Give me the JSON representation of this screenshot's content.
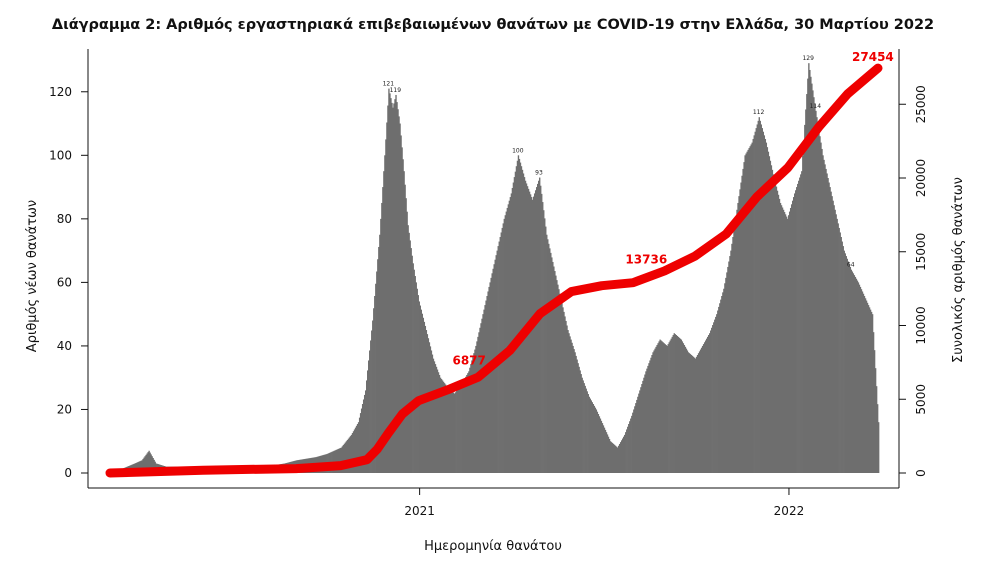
{
  "chart_data": {
    "type": "bar",
    "title": "Διάγραμμα 2: Αριθμός εργαστηριακά επιβεβαιωμένων θανάτων με COVID-19 στην Ελλάδα, 30 Μαρτίου 2022",
    "xlabel": "Ημερομηνία θανάτου",
    "ylabel": "Αριθμός νέων θανάτων",
    "y2label": "Συνολικός αριθμός θανάτων",
    "x_range": [
      "2020-03-01",
      "2022-03-30"
    ],
    "x_ticks": [
      {
        "date": "2021-01-01",
        "label": "2021"
      },
      {
        "date": "2022-01-01",
        "label": "2022"
      }
    ],
    "ylim": [
      0,
      130
    ],
    "y_ticks": [
      0,
      20,
      40,
      60,
      80,
      100,
      120
    ],
    "y2lim": [
      0,
      28000
    ],
    "y2_ticks": [
      0,
      5000,
      10000,
      15000,
      20000,
      25000
    ],
    "grid": false,
    "series": [
      {
        "name": "Αριθμός νέων θανάτων",
        "kind": "bar",
        "color": "#6e6e6e",
        "points": [
          [
            "2020-03-10",
            1
          ],
          [
            "2020-03-25",
            3
          ],
          [
            "2020-04-01",
            4
          ],
          [
            "2020-04-08",
            7
          ],
          [
            "2020-04-15",
            3
          ],
          [
            "2020-04-25",
            2
          ],
          [
            "2020-05-05",
            2
          ],
          [
            "2020-06-01",
            1
          ],
          [
            "2020-07-01",
            1
          ],
          [
            "2020-08-01",
            2
          ],
          [
            "2020-08-20",
            3
          ],
          [
            "2020-09-01",
            4
          ],
          [
            "2020-09-20",
            5
          ],
          [
            "2020-10-01",
            6
          ],
          [
            "2020-10-15",
            8
          ],
          [
            "2020-10-25",
            12
          ],
          [
            "2020-11-01",
            16
          ],
          [
            "2020-11-08",
            26
          ],
          [
            "2020-11-15",
            48
          ],
          [
            "2020-11-22",
            75
          ],
          [
            "2020-11-28",
            105
          ],
          [
            "2020-12-01",
            121
          ],
          [
            "2020-12-05",
            115
          ],
          [
            "2020-12-08",
            119
          ],
          [
            "2020-12-12",
            110
          ],
          [
            "2020-12-16",
            95
          ],
          [
            "2020-12-20",
            78
          ],
          [
            "2020-12-25",
            66
          ],
          [
            "2020-12-31",
            54
          ],
          [
            "2021-01-07",
            45
          ],
          [
            "2021-01-14",
            36
          ],
          [
            "2021-01-21",
            30
          ],
          [
            "2021-01-28",
            27
          ],
          [
            "2021-02-04",
            25
          ],
          [
            "2021-02-11",
            28
          ],
          [
            "2021-02-18",
            32
          ],
          [
            "2021-02-25",
            40
          ],
          [
            "2021-03-04",
            50
          ],
          [
            "2021-03-11",
            60
          ],
          [
            "2021-03-18",
            70
          ],
          [
            "2021-03-25",
            80
          ],
          [
            "2021-04-01",
            88
          ],
          [
            "2021-04-08",
            100
          ],
          [
            "2021-04-15",
            92
          ],
          [
            "2021-04-22",
            86
          ],
          [
            "2021-04-29",
            93
          ],
          [
            "2021-05-06",
            75
          ],
          [
            "2021-05-13",
            65
          ],
          [
            "2021-05-20",
            55
          ],
          [
            "2021-05-27",
            45
          ],
          [
            "2021-06-03",
            38
          ],
          [
            "2021-06-10",
            30
          ],
          [
            "2021-06-17",
            24
          ],
          [
            "2021-06-24",
            20
          ],
          [
            "2021-07-01",
            15
          ],
          [
            "2021-07-08",
            10
          ],
          [
            "2021-07-15",
            8
          ],
          [
            "2021-07-22",
            12
          ],
          [
            "2021-07-29",
            18
          ],
          [
            "2021-08-05",
            25
          ],
          [
            "2021-08-12",
            32
          ],
          [
            "2021-08-19",
            38
          ],
          [
            "2021-08-26",
            42
          ],
          [
            "2021-09-02",
            40
          ],
          [
            "2021-09-09",
            44
          ],
          [
            "2021-09-16",
            42
          ],
          [
            "2021-09-23",
            38
          ],
          [
            "2021-09-30",
            36
          ],
          [
            "2021-10-07",
            40
          ],
          [
            "2021-10-14",
            44
          ],
          [
            "2021-10-21",
            50
          ],
          [
            "2021-10-28",
            58
          ],
          [
            "2021-11-04",
            70
          ],
          [
            "2021-11-11",
            85
          ],
          [
            "2021-11-18",
            100
          ],
          [
            "2021-11-25",
            104
          ],
          [
            "2021-12-02",
            112
          ],
          [
            "2021-12-09",
            104
          ],
          [
            "2021-12-16",
            94
          ],
          [
            "2021-12-23",
            85
          ],
          [
            "2021-12-30",
            80
          ],
          [
            "2022-01-06",
            88
          ],
          [
            "2022-01-13",
            95
          ],
          [
            "2022-01-20",
            129
          ],
          [
            "2022-01-27",
            114
          ],
          [
            "2022-02-03",
            100
          ],
          [
            "2022-02-10",
            90
          ],
          [
            "2022-02-17",
            80
          ],
          [
            "2022-02-24",
            70
          ],
          [
            "2022-03-03",
            64
          ],
          [
            "2022-03-10",
            60
          ],
          [
            "2022-03-17",
            55
          ],
          [
            "2022-03-24",
            50
          ],
          [
            "2022-03-30",
            16
          ]
        ]
      },
      {
        "name": "Συνολικός αριθμός θανάτων",
        "kind": "line",
        "axis": "right",
        "color": "#ee0000",
        "points": [
          [
            "2020-03-01",
            0
          ],
          [
            "2020-06-01",
            190
          ],
          [
            "2020-09-01",
            300
          ],
          [
            "2020-10-15",
            500
          ],
          [
            "2020-11-10",
            900
          ],
          [
            "2020-11-20",
            1600
          ],
          [
            "2020-12-01",
            2700
          ],
          [
            "2020-12-15",
            4000
          ],
          [
            "2020-12-31",
            4900
          ],
          [
            "2021-01-31",
            5700
          ],
          [
            "2021-02-28",
            6500
          ],
          [
            "2021-03-31",
            8300
          ],
          [
            "2021-04-30",
            10800
          ],
          [
            "2021-05-31",
            12300
          ],
          [
            "2021-06-30",
            12700
          ],
          [
            "2021-07-31",
            12900
          ],
          [
            "2021-08-31",
            13700
          ],
          [
            "2021-09-30",
            14700
          ],
          [
            "2021-10-31",
            16200
          ],
          [
            "2021-11-30",
            18700
          ],
          [
            "2021-12-31",
            20700
          ],
          [
            "2022-01-31",
            23500
          ],
          [
            "2022-02-28",
            25700
          ],
          [
            "2022-03-30",
            27454
          ]
        ]
      }
    ],
    "annotations": [
      {
        "date": "2021-02-19",
        "value": 6877,
        "text": "6877"
      },
      {
        "date": "2021-08-13",
        "value": 13736,
        "text": "13736"
      },
      {
        "date": "2022-03-25",
        "value": 27454,
        "text": "27454"
      }
    ],
    "peak_labels": [
      {
        "date": "2020-12-01",
        "value": 121,
        "text": "121"
      },
      {
        "date": "2020-12-08",
        "value": 119,
        "text": "119"
      },
      {
        "date": "2021-04-08",
        "value": 100,
        "text": "100"
      },
      {
        "date": "2021-04-29",
        "value": 93,
        "text": "93"
      },
      {
        "date": "2021-12-02",
        "value": 112,
        "text": "112"
      },
      {
        "date": "2022-01-20",
        "value": 129,
        "text": "129"
      },
      {
        "date": "2022-01-27",
        "value": 114,
        "text": "114"
      },
      {
        "date": "2022-03-03",
        "value": 64,
        "text": "64"
      }
    ]
  }
}
